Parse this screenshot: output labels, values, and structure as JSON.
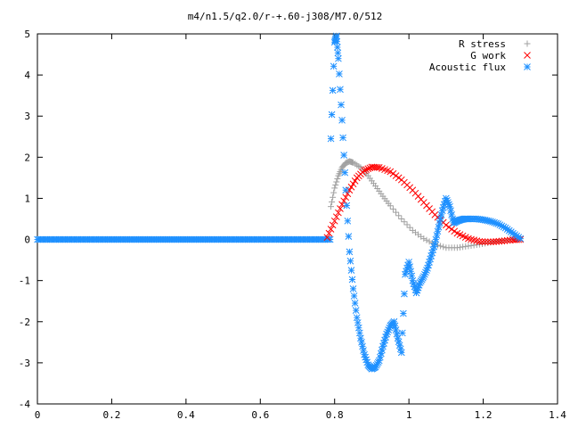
{
  "chart_data": {
    "type": "scatter",
    "title": "m4/n1.5/q2.0/r-+.60-j308/M7.0/512",
    "xlabel": "",
    "ylabel": "",
    "xlim": [
      0,
      1.4
    ],
    "ylim": [
      -4,
      5
    ],
    "x_ticks": [
      "0",
      "0.2",
      "0.4",
      "0.6",
      "0.8",
      "1",
      "1.2",
      "1.4"
    ],
    "x_tick_values": [
      0,
      0.2,
      0.4,
      0.6,
      0.8,
      1.0,
      1.2,
      1.4
    ],
    "y_ticks": [
      "-4",
      "-3",
      "-2",
      "-1",
      "0",
      "1",
      "2",
      "3",
      "4",
      "5"
    ],
    "y_tick_values": [
      -4,
      -3,
      -2,
      -1,
      0,
      1,
      2,
      3,
      4,
      5
    ],
    "grid": false,
    "legend_position": "top-right",
    "series": [
      {
        "name": "R stress",
        "marker": "plus",
        "color": "#a0a0a0",
        "x": [
          0.79,
          0.8,
          0.81,
          0.82,
          0.83,
          0.84,
          0.85,
          0.87,
          0.89,
          0.91,
          0.93,
          0.95,
          0.98,
          1.01,
          1.04,
          1.07,
          1.1,
          1.13,
          1.16,
          1.19,
          1.22,
          1.25,
          1.28,
          1.3
        ],
        "y": [
          0.8,
          1.25,
          1.55,
          1.75,
          1.86,
          1.9,
          1.87,
          1.75,
          1.55,
          1.3,
          1.05,
          0.82,
          0.5,
          0.22,
          0.02,
          -0.12,
          -0.2,
          -0.2,
          -0.16,
          -0.12,
          -0.07,
          -0.03,
          0.0,
          0.02
        ]
      },
      {
        "name": "G work",
        "marker": "cross",
        "color": "#ff0000",
        "x": [
          0.78,
          0.8,
          0.82,
          0.84,
          0.86,
          0.88,
          0.9,
          0.92,
          0.95,
          0.98,
          1.01,
          1.04,
          1.07,
          1.1,
          1.13,
          1.16,
          1.19,
          1.22,
          1.25,
          1.28,
          1.3
        ],
        "y": [
          0.05,
          0.45,
          0.85,
          1.2,
          1.5,
          1.68,
          1.76,
          1.75,
          1.65,
          1.45,
          1.2,
          0.9,
          0.6,
          0.35,
          0.15,
          0.02,
          -0.05,
          -0.06,
          -0.04,
          -0.01,
          0.0
        ]
      },
      {
        "name": "Acoustic flux",
        "marker": "star",
        "color": "#1e90ff",
        "x": [
          0.79,
          0.8,
          0.805,
          0.81,
          0.82,
          0.83,
          0.84,
          0.85,
          0.86,
          0.87,
          0.88,
          0.89,
          0.9,
          0.91,
          0.92,
          0.93,
          0.94,
          0.95,
          0.96,
          0.97,
          0.98,
          0.99,
          1.0,
          1.01,
          1.02,
          1.03,
          1.04,
          1.05,
          1.06,
          1.07,
          1.08,
          1.09,
          1.1,
          1.11,
          1.12,
          1.13,
          1.14,
          1.15,
          1.16,
          1.18,
          1.2,
          1.22,
          1.24,
          1.26,
          1.28,
          1.3
        ],
        "y": [
          2.45,
          4.8,
          4.95,
          4.4,
          2.9,
          1.2,
          -0.3,
          -1.2,
          -1.9,
          -2.4,
          -2.8,
          -3.05,
          -3.15,
          -3.1,
          -2.95,
          -2.6,
          -2.3,
          -2.1,
          -2.0,
          -2.4,
          -2.75,
          -0.85,
          -0.55,
          -1.0,
          -1.3,
          -1.05,
          -0.9,
          -0.7,
          -0.4,
          -0.1,
          0.3,
          0.7,
          1.0,
          0.8,
          0.4,
          0.45,
          0.48,
          0.5,
          0.5,
          0.5,
          0.48,
          0.44,
          0.38,
          0.28,
          0.15,
          0.02
        ]
      }
    ],
    "zero_line": {
      "x_start": 0,
      "x_end": 0.79,
      "value": 0
    }
  }
}
